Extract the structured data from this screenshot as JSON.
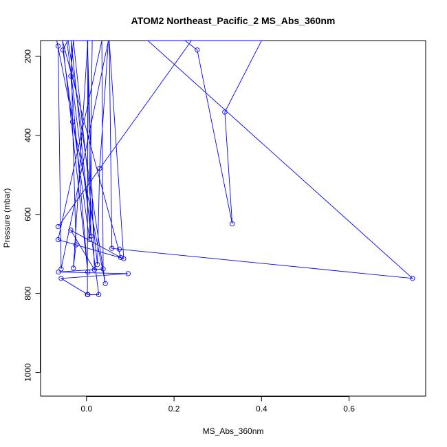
{
  "chart_data": {
    "type": "line",
    "title": "ATOM2 Northeast_Pacific_2 MS_Abs_360nm",
    "xlabel": "MS_Abs_360nm",
    "ylabel": "Pressure (mbar)",
    "xlim": [
      -0.105,
      0.775
    ],
    "ylim": [
      1060,
      160
    ],
    "y_reversed": true,
    "x_ticks": [
      0.0,
      0.2,
      0.4,
      0.6
    ],
    "x_tick_labels": [
      "0.0",
      "0.2",
      "0.4",
      "0.6"
    ],
    "y_ticks": [
      200,
      400,
      600,
      800,
      1000
    ],
    "y_tick_labels": [
      "200",
      "400",
      "600",
      "800",
      "1000"
    ],
    "line_color": "#0000ff",
    "grid": false,
    "legend": "none",
    "series": [
      {
        "points": [
          {
            "x": -0.065,
            "y": 631
          },
          {
            "x": 0.24,
            "y": 160
          },
          {
            "x": 0.225,
            "y": 160
          },
          {
            "x": 0.253,
            "y": 184
          },
          {
            "x": 0.333,
            "y": 624
          },
          {
            "x": 0.316,
            "y": 341
          },
          {
            "x": 0.4,
            "y": 160
          },
          {
            "x": 0.14,
            "y": 160
          },
          {
            "x": 0.745,
            "y": 762
          },
          {
            "x": 0.075,
            "y": 688
          },
          {
            "x": 0.058,
            "y": 686
          },
          {
            "x": 0.052,
            "y": 160
          },
          {
            "x": 0.085,
            "y": 712
          },
          {
            "x": -0.065,
            "y": 664
          },
          {
            "x": 0.035,
            "y": 160
          },
          {
            "x": 0.038,
            "y": 738
          },
          {
            "x": -0.064,
            "y": 746
          },
          {
            "x": 0.095,
            "y": 750
          },
          {
            "x": -0.058,
            "y": 762
          },
          {
            "x": 0.003,
            "y": 803
          },
          {
            "x": 0.028,
            "y": 803
          },
          {
            "x": -0.045,
            "y": 160
          },
          {
            "x": -0.043,
            "y": 160
          },
          {
            "x": -0.054,
            "y": 184
          },
          {
            "x": 0.007,
            "y": 664
          },
          {
            "x": 0.013,
            "y": 160
          },
          {
            "x": -0.042,
            "y": 160
          },
          {
            "x": 0.043,
            "y": 775
          },
          {
            "x": -0.068,
            "y": 160
          },
          {
            "x": -0.065,
            "y": 174
          },
          {
            "x": -0.058,
            "y": 738
          },
          {
            "x": 0.05,
            "y": 160
          },
          {
            "x": 0.03,
            "y": 484
          },
          {
            "x": 0.025,
            "y": 727
          },
          {
            "x": -0.03,
            "y": 160
          },
          {
            "x": -0.036,
            "y": 250
          },
          {
            "x": 0.003,
            "y": 746
          },
          {
            "x": -0.055,
            "y": 160
          },
          {
            "x": 0.078,
            "y": 709
          },
          {
            "x": -0.036,
            "y": 640
          },
          {
            "x": 0.018,
            "y": 740
          },
          {
            "x": 0.002,
            "y": 160
          },
          {
            "x": 0.01,
            "y": 655
          },
          {
            "x": -0.035,
            "y": 160
          },
          {
            "x": -0.032,
            "y": 366
          },
          {
            "x": -0.024,
            "y": 677
          },
          {
            "x": -0.03,
            "y": 736
          },
          {
            "x": 0.003,
            "y": 160
          },
          {
            "x": 0.002,
            "y": 803
          }
        ]
      }
    ]
  }
}
